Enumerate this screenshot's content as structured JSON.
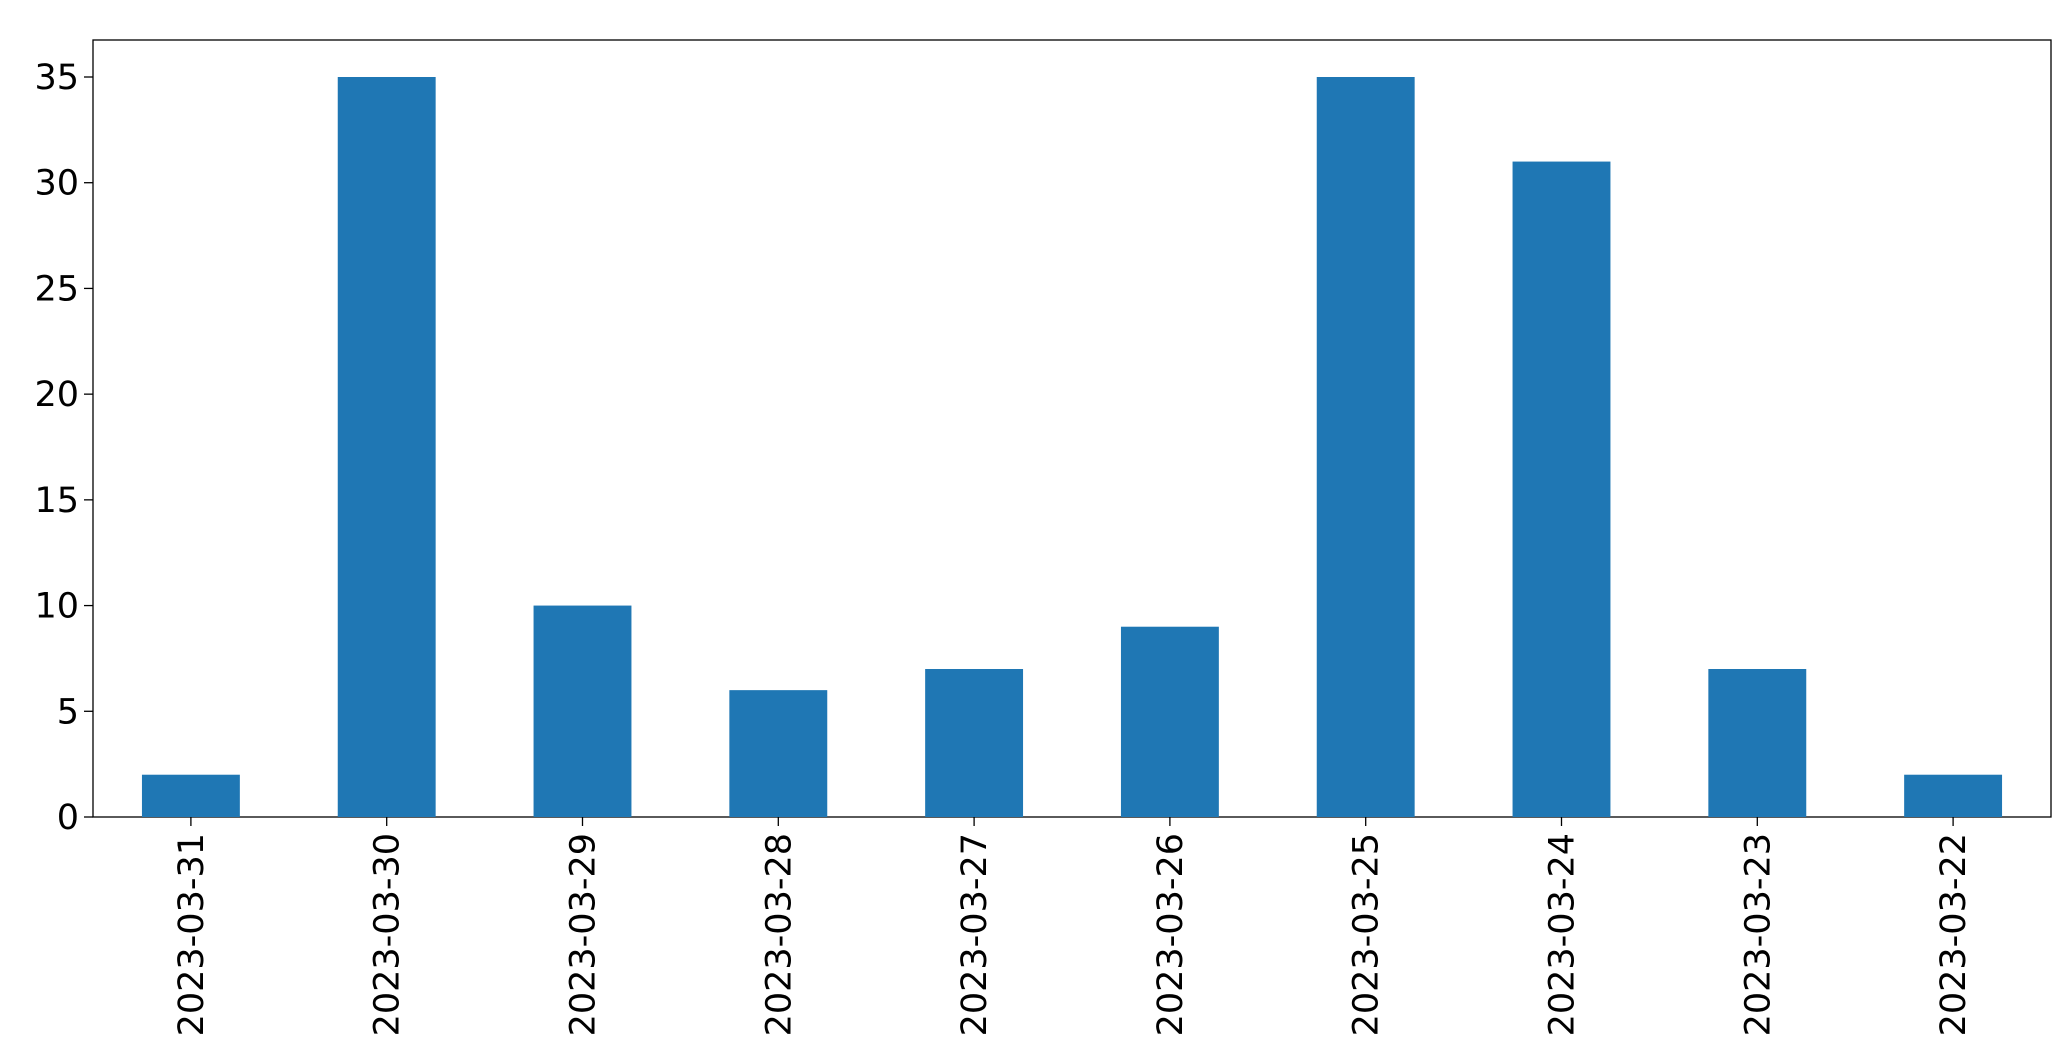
{
  "chart_data": {
    "type": "bar",
    "categories": [
      "2023-03-31",
      "2023-03-30",
      "2023-03-29",
      "2023-03-28",
      "2023-03-27",
      "2023-03-26",
      "2023-03-25",
      "2023-03-24",
      "2023-03-23",
      "2023-03-22"
    ],
    "values": [
      2,
      35,
      10,
      6,
      7,
      9,
      35,
      31,
      7,
      2
    ],
    "color": "#1f77b4",
    "ylim": [
      0,
      36.75
    ],
    "yticks": [
      0,
      5,
      10,
      15,
      20,
      25,
      30,
      35
    ],
    "grid": false
  }
}
